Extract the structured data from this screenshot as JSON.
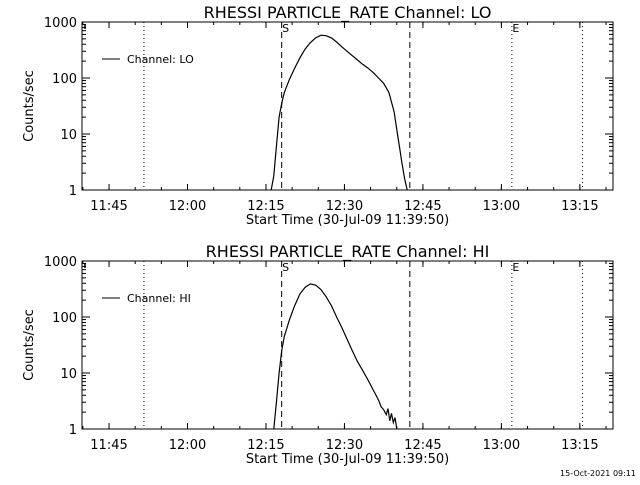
{
  "footer": {
    "timestamp": "15-Oct-2021 09:11"
  },
  "chart_data": [
    {
      "type": "line",
      "title": "RHESSI PARTICLE_RATE Channel: LO",
      "xlabel": "Start Time (30-Jul-09 11:39:50)",
      "ylabel": "Counts/sec",
      "yscale": "log",
      "ylim": [
        1,
        1000
      ],
      "xlim": [
        "11:39:50",
        "13:21:20"
      ],
      "x_ticks": [
        "11:45",
        "12:00",
        "12:15",
        "12:30",
        "12:45",
        "13:00",
        "13:15"
      ],
      "y_ticks": [
        "1",
        "10",
        "100",
        "1000"
      ],
      "legend": {
        "position": "top-left",
        "entries": [
          "Channel: LO"
        ]
      },
      "markers": {
        "start_label": "S",
        "end_label": "E",
        "start_time": "12:18:00",
        "end_time": "12:42:30",
        "E_time": "13:02:00"
      },
      "dotted_lines": [
        "11:51:40",
        "13:02:00",
        "13:15:30"
      ],
      "series": [
        {
          "name": "Channel: LO",
          "x": [
            "12:16:00",
            "12:16:30",
            "12:17:00",
            "12:17:30",
            "12:18:00",
            "12:18:30",
            "12:19:30",
            "12:20:30",
            "12:21:30",
            "12:22:30",
            "12:23:30",
            "12:24:30",
            "12:25:30",
            "12:26:30",
            "12:27:30",
            "12:28:30",
            "12:29:30",
            "12:30:30",
            "12:31:30",
            "12:32:30",
            "12:33:30",
            "12:34:30",
            "12:35:30",
            "12:36:30",
            "12:37:30",
            "12:38:30",
            "12:39:30",
            "12:40:00",
            "12:40:30",
            "12:41:00",
            "12:41:30",
            "12:42:00"
          ],
          "values": [
            1.0,
            1.8,
            6,
            20,
            35,
            55,
            95,
            150,
            230,
            330,
            430,
            520,
            580,
            570,
            520,
            440,
            360,
            300,
            250,
            210,
            175,
            150,
            125,
            100,
            80,
            55,
            25,
            12,
            6,
            3,
            1.6,
            1.0
          ]
        }
      ]
    },
    {
      "type": "line",
      "title": "RHESSI PARTICLE_RATE Channel: HI",
      "xlabel": "Start Time (30-Jul-09 11:39:50)",
      "ylabel": "Counts/sec",
      "yscale": "log",
      "ylim": [
        1,
        1000
      ],
      "xlim": [
        "11:39:50",
        "13:21:20"
      ],
      "x_ticks": [
        "11:45",
        "12:00",
        "12:15",
        "12:30",
        "12:45",
        "13:00",
        "13:15"
      ],
      "y_ticks": [
        "1",
        "10",
        "100",
        "1000"
      ],
      "legend": {
        "position": "top-left",
        "entries": [
          "Channel: HI"
        ]
      },
      "markers": {
        "start_label": "S",
        "end_label": "E",
        "start_time": "12:18:00",
        "end_time": "12:42:30",
        "E_time": "13:02:00"
      },
      "dotted_lines": [
        "11:51:40",
        "13:02:00",
        "13:15:30"
      ],
      "series": [
        {
          "name": "Channel: HI",
          "x": [
            "12:16:30",
            "12:17:00",
            "12:17:30",
            "12:18:00",
            "12:18:30",
            "12:19:30",
            "12:20:30",
            "12:21:30",
            "12:22:30",
            "12:23:30",
            "12:24:30",
            "12:25:30",
            "12:26:30",
            "12:27:30",
            "12:28:30",
            "12:29:30",
            "12:30:30",
            "12:31:30",
            "12:32:30",
            "12:33:30",
            "12:34:30",
            "12:35:30",
            "12:36:30",
            "12:37:00",
            "12:37:30",
            "12:38:00",
            "12:38:20",
            "12:38:40",
            "12:39:00",
            "12:39:20",
            "12:39:40",
            "12:40:00"
          ],
          "values": [
            1.0,
            3,
            10,
            25,
            45,
            90,
            160,
            260,
            340,
            390,
            370,
            310,
            230,
            160,
            100,
            65,
            40,
            25,
            16,
            11,
            7.5,
            5,
            3.3,
            2.5,
            2.2,
            1.8,
            2.3,
            1.4,
            1.9,
            1.3,
            1.6,
            1.0
          ]
        }
      ]
    }
  ]
}
